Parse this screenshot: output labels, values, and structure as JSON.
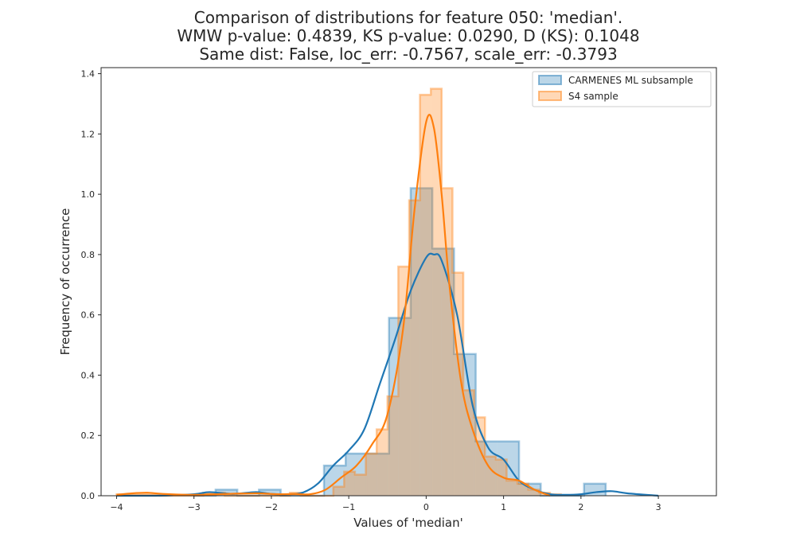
{
  "chart_data": {
    "type": "histogram",
    "title_lines": [
      "Comparison of distributions for feature 050: 'median'.",
      "WMW p-value: 0.4839, KS p-value: 0.0290, D (KS): 0.1048",
      "Same dist: False, loc_err: -0.7567, scale_err: -0.3793"
    ],
    "xlabel": "Values of 'median'",
    "ylabel": "Frequency of occurrence",
    "xlim": [
      -4.2,
      3.75
    ],
    "ylim": [
      0,
      1.42
    ],
    "x_ticks": [
      -4,
      -3,
      -2,
      -1,
      0,
      1,
      2,
      3
    ],
    "x_tick_labels": [
      "−4",
      "−3",
      "−2",
      "−1",
      "0",
      "1",
      "2",
      "3"
    ],
    "y_ticks": [
      0,
      0.2,
      0.4,
      0.6,
      0.8,
      1.0,
      1.2,
      1.4
    ],
    "y_tick_labels": [
      "0.0",
      "0.2",
      "0.4",
      "0.6",
      "0.8",
      "1.0",
      "1.2",
      "1.4"
    ],
    "grid": false,
    "legend_position": "top-right",
    "series": [
      {
        "name": "CARMENES ML subsample",
        "color": "#1f77b4",
        "bins": [
          [
            -3.0,
            -2.72,
            0.0
          ],
          [
            -2.72,
            -2.44,
            0.02
          ],
          [
            -2.44,
            -2.16,
            0.0
          ],
          [
            -2.16,
            -1.88,
            0.02
          ],
          [
            -1.88,
            -1.32,
            0.0
          ],
          [
            -1.32,
            -1.04,
            0.1
          ],
          [
            -1.04,
            -0.76,
            0.14
          ],
          [
            -0.76,
            -0.48,
            0.14
          ],
          [
            -0.48,
            -0.2,
            0.59
          ],
          [
            -0.2,
            0.08,
            1.02
          ],
          [
            0.08,
            0.36,
            0.82
          ],
          [
            0.36,
            0.64,
            0.47
          ],
          [
            0.64,
            0.92,
            0.18
          ],
          [
            0.92,
            1.2,
            0.18
          ],
          [
            1.2,
            1.48,
            0.04
          ],
          [
            1.48,
            2.04,
            0.0
          ],
          [
            2.04,
            2.32,
            0.04
          ]
        ],
        "kde_x": [
          -4.0,
          -3.5,
          -3.0,
          -2.8,
          -2.5,
          -2.2,
          -2.0,
          -1.8,
          -1.6,
          -1.4,
          -1.2,
          -1.0,
          -0.8,
          -0.6,
          -0.4,
          -0.2,
          0.0,
          0.1,
          0.2,
          0.4,
          0.6,
          0.8,
          1.0,
          1.2,
          1.4,
          1.6,
          1.8,
          2.0,
          2.2,
          2.4,
          2.6,
          3.0
        ],
        "kde_y": [
          0.0,
          0.0,
          0.005,
          0.012,
          0.006,
          0.012,
          0.006,
          0.005,
          0.01,
          0.04,
          0.1,
          0.15,
          0.22,
          0.37,
          0.52,
          0.68,
          0.79,
          0.8,
          0.78,
          0.6,
          0.3,
          0.16,
          0.12,
          0.05,
          0.02,
          0.005,
          0.003,
          0.005,
          0.012,
          0.015,
          0.008,
          0.0
        ]
      },
      {
        "name": "S4 sample",
        "color": "#ff7f0e",
        "bins": [
          [
            -4.0,
            -3.86,
            0.005
          ],
          [
            -3.86,
            -3.72,
            0.005
          ],
          [
            -3.72,
            -3.44,
            0.005
          ],
          [
            -3.44,
            -2.88,
            0.0
          ],
          [
            -2.88,
            -2.6,
            0.01
          ],
          [
            -2.6,
            -1.76,
            0.0
          ],
          [
            -1.76,
            -1.62,
            0.01
          ],
          [
            -1.62,
            -1.2,
            0.0
          ],
          [
            -1.2,
            -1.06,
            0.03
          ],
          [
            -1.06,
            -0.92,
            0.08
          ],
          [
            -0.92,
            -0.78,
            0.07
          ],
          [
            -0.78,
            -0.64,
            0.14
          ],
          [
            -0.64,
            -0.5,
            0.22
          ],
          [
            -0.5,
            -0.36,
            0.33
          ],
          [
            -0.36,
            -0.22,
            0.76
          ],
          [
            -0.22,
            -0.08,
            0.98
          ],
          [
            -0.08,
            0.06,
            1.33
          ],
          [
            0.06,
            0.2,
            1.35
          ],
          [
            0.2,
            0.34,
            1.02
          ],
          [
            0.34,
            0.48,
            0.74
          ],
          [
            0.48,
            0.62,
            0.35
          ],
          [
            0.62,
            0.76,
            0.26
          ],
          [
            0.76,
            0.9,
            0.13
          ],
          [
            0.9,
            1.04,
            0.12
          ],
          [
            1.04,
            1.18,
            0.05
          ],
          [
            1.18,
            1.32,
            0.04
          ],
          [
            1.32,
            1.46,
            0.02
          ],
          [
            1.46,
            1.6,
            0.01
          ],
          [
            1.6,
            1.74,
            0.005
          ]
        ],
        "kde_x": [
          -4.0,
          -3.8,
          -3.6,
          -3.4,
          -3.0,
          -2.6,
          -2.2,
          -1.9,
          -1.7,
          -1.5,
          -1.3,
          -1.1,
          -0.9,
          -0.7,
          -0.5,
          -0.3,
          -0.15,
          0.0,
          0.1,
          0.2,
          0.3,
          0.45,
          0.6,
          0.8,
          1.0,
          1.2,
          1.4,
          1.6
        ],
        "kde_y": [
          0.003,
          0.008,
          0.01,
          0.006,
          0.003,
          0.006,
          0.008,
          0.005,
          0.006,
          0.005,
          0.02,
          0.06,
          0.1,
          0.17,
          0.27,
          0.55,
          0.95,
          1.24,
          1.22,
          1.0,
          0.7,
          0.38,
          0.22,
          0.1,
          0.06,
          0.05,
          0.02,
          0.0
        ]
      }
    ]
  }
}
